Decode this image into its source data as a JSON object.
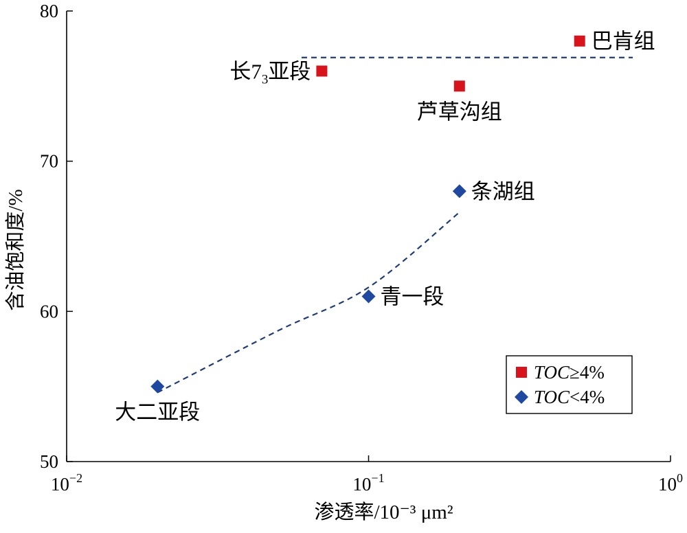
{
  "chart_data": {
    "type": "scatter",
    "xlabel": "渗透率/10⁻³ μm²",
    "ylabel": "含油饱和度/%",
    "x_scale": "log",
    "xlim": [
      0.01,
      1
    ],
    "ylim": [
      50,
      80
    ],
    "x_ticks": [
      {
        "value": 0.01,
        "base": "10",
        "exp": "−2"
      },
      {
        "value": 0.1,
        "base": "10",
        "exp": "−1"
      },
      {
        "value": 1,
        "base": "10",
        "exp": "0"
      }
    ],
    "y_ticks": [
      50,
      60,
      70,
      80
    ],
    "grid": false,
    "legend": {
      "position": "bottom-right"
    },
    "series": [
      {
        "name": "TOC≥4%",
        "legend_italic": "TOC",
        "legend_rest": "≥4%",
        "marker": "square",
        "color": "#d7141c",
        "points": [
          {
            "x": 0.07,
            "y": 76,
            "label": "长7",
            "label_sub": "3",
            "label_tail": "亚段",
            "label_side": "left"
          },
          {
            "x": 0.2,
            "y": 75,
            "label": "芦草沟组",
            "label_side": "below"
          },
          {
            "x": 0.5,
            "y": 78,
            "label": "巴肯组",
            "label_side": "right"
          }
        ]
      },
      {
        "name": "TOC<4%",
        "legend_italic": "TOC",
        "legend_rest": "<4%",
        "marker": "diamond",
        "color": "#1f48a0",
        "points": [
          {
            "x": 0.02,
            "y": 55,
            "label": "大二亚段",
            "label_side": "below"
          },
          {
            "x": 0.1,
            "y": 61,
            "label": "青一段",
            "label_side": "right"
          },
          {
            "x": 0.2,
            "y": 68,
            "label": "条湖组",
            "label_side": "right"
          }
        ]
      }
    ],
    "trendlines": [
      {
        "style": "dashed",
        "color": "#1f3c7a",
        "points": [
          [
            0.02,
            54.6
          ],
          [
            0.05,
            58.7
          ],
          [
            0.1,
            61.6
          ],
          [
            0.2,
            66.6
          ]
        ]
      },
      {
        "style": "dashed",
        "color": "#1f3c7a",
        "points": [
          [
            0.06,
            76.9
          ],
          [
            0.75,
            76.9
          ]
        ]
      }
    ]
  }
}
